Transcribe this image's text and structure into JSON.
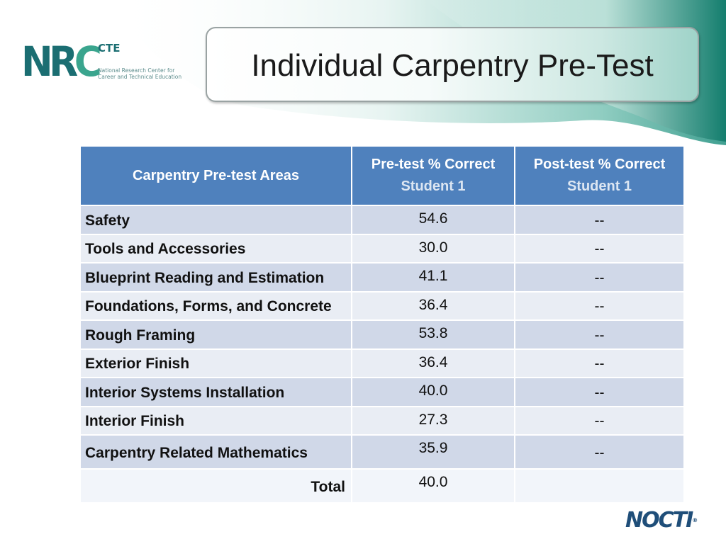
{
  "slide": {
    "title": "Individual Carpentry Pre-Test"
  },
  "logos": {
    "nrc": {
      "letters_1": "NR",
      "letters_2": "C",
      "superscript": "CTE",
      "subtitle_line1": "National Research Center for",
      "subtitle_line2": "Career and Technical Education"
    },
    "nocti": {
      "text": "NOCTI",
      "mark": "®"
    }
  },
  "colors": {
    "teal_brand": "#1b6e72",
    "header_blue": "#4f81bd",
    "row_band_dark": "#d0d8e8",
    "row_band_light": "#e9edf4"
  },
  "table": {
    "headers": {
      "area": "Carpentry Pre-test Areas",
      "pre_line1": "Pre-test % Correct",
      "pre_line2": "Student 1",
      "post_line1": "Post-test % Correct",
      "post_line2": "Student 1"
    },
    "rows": [
      {
        "area": "Safety",
        "pre": "54.6",
        "post": "--"
      },
      {
        "area": "Tools and Accessories",
        "pre": "30.0",
        "post": "--"
      },
      {
        "area": "Blueprint Reading and Estimation",
        "pre": "41.1",
        "post": "--"
      },
      {
        "area": "Foundations, Forms, and Concrete",
        "pre": "36.4",
        "post": "--"
      },
      {
        "area": "Rough Framing",
        "pre": "53.8",
        "post": "--"
      },
      {
        "area": "Exterior Finish",
        "pre": "36.4",
        "post": "--"
      },
      {
        "area": "Interior Systems Installation",
        "pre": "40.0",
        "post": "--"
      },
      {
        "area": "Interior Finish",
        "pre": "27.3",
        "post": "--"
      },
      {
        "area": "Carpentry Related Mathematics",
        "pre": "35.9",
        "post": "--"
      }
    ],
    "total": {
      "label": "Total",
      "pre": "40.0",
      "post": ""
    }
  }
}
